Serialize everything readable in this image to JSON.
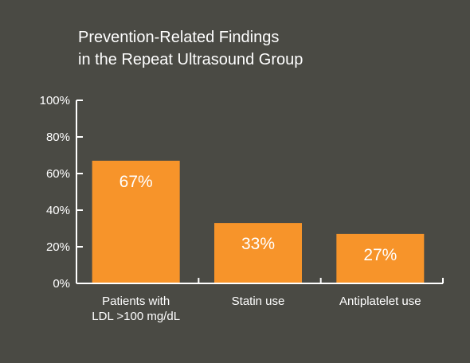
{
  "chart_data": {
    "type": "bar",
    "title": [
      "Prevention-Related Findings",
      "in the Repeat Ultrasound Group"
    ],
    "categories": [
      [
        "Patients with",
        "LDL >100 mg/dL"
      ],
      [
        "Statin use"
      ],
      [
        "Antiplatelet use"
      ]
    ],
    "values": [
      67,
      33,
      27
    ],
    "value_labels": [
      "67%",
      "33%",
      "27%"
    ],
    "ylim": [
      0,
      100
    ],
    "yticks": [
      0,
      20,
      40,
      60,
      80,
      100
    ],
    "ytick_labels": [
      "0%",
      "20%",
      "40%",
      "60%",
      "80%",
      "100%"
    ],
    "grid": false,
    "colors": {
      "background": "#4a4a44",
      "bar": "#f7942a",
      "text": "#ffffff",
      "axis": "#ffffff"
    }
  }
}
